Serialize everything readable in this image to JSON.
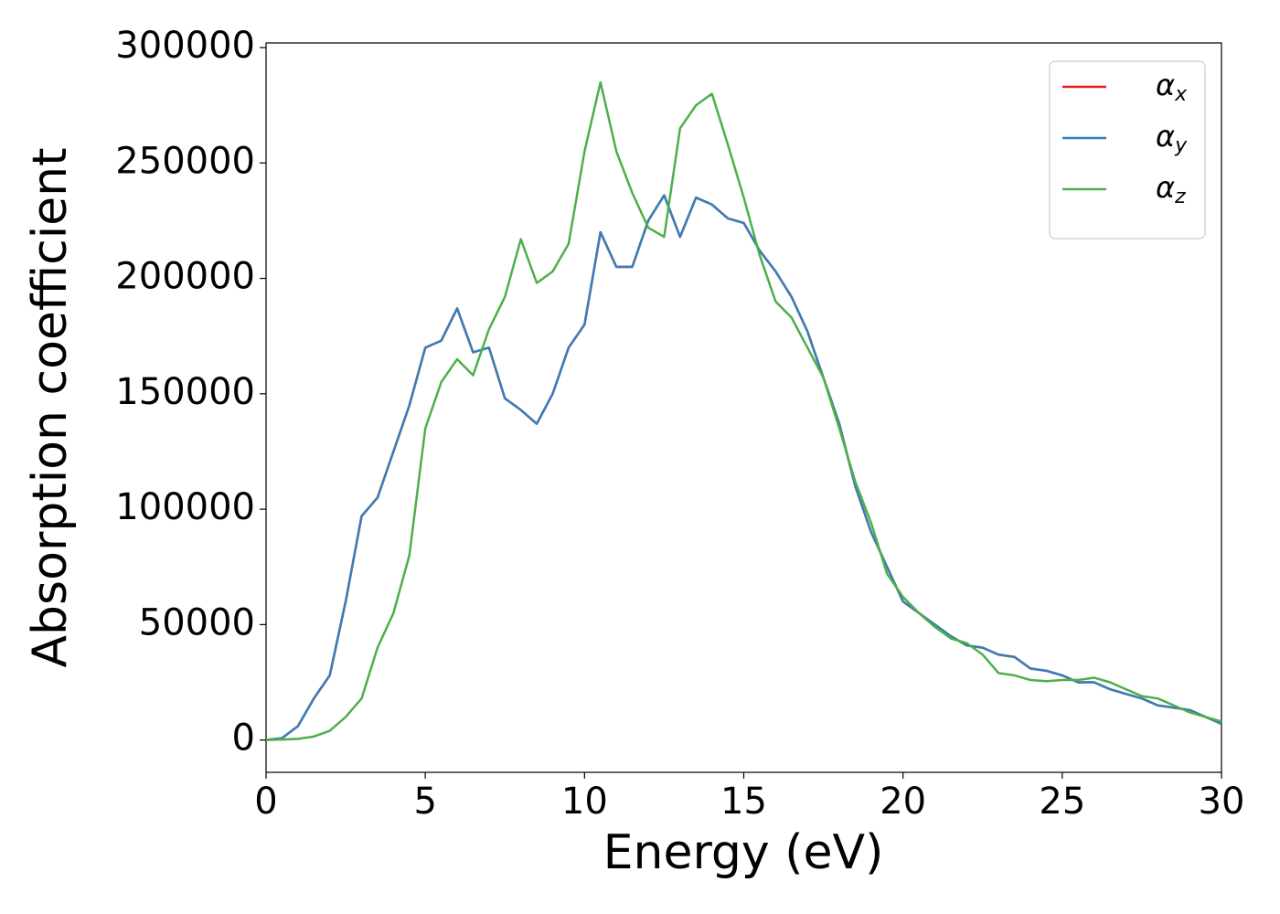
{
  "chart_data": {
    "type": "line",
    "xlabel": "Energy (eV)",
    "ylabel": "Absorption coefficient",
    "x": [
      0,
      0.5,
      1,
      1.5,
      2,
      2.5,
      3,
      3.5,
      4,
      4.5,
      5,
      5.5,
      6,
      6.5,
      7,
      7.5,
      8,
      8.5,
      9,
      9.5,
      10,
      10.5,
      11,
      11.5,
      12,
      12.5,
      13,
      13.5,
      14,
      14.5,
      15,
      15.5,
      16,
      16.5,
      17,
      17.5,
      18,
      18.5,
      19,
      19.5,
      20,
      20.5,
      21,
      21.5,
      22,
      22.5,
      23,
      23.5,
      24,
      24.5,
      25,
      25.5,
      26,
      26.5,
      27,
      27.5,
      28,
      28.5,
      29,
      29.5,
      30
    ],
    "series": [
      {
        "name": "αx",
        "color": "#e41a1c",
        "values": [
          0,
          800,
          6000,
          18000,
          28000,
          60000,
          97000,
          105000,
          125000,
          145000,
          170000,
          173000,
          187000,
          168000,
          170000,
          148000,
          143000,
          137000,
          150000,
          170000,
          180000,
          220000,
          205000,
          205000,
          225000,
          236000,
          218000,
          235000,
          232000,
          226000,
          224000,
          212000,
          203000,
          192000,
          177000,
          157000,
          137000,
          110000,
          90000,
          75000,
          60000,
          55000,
          50000,
          45000,
          41000,
          40000,
          37000,
          36000,
          31000,
          30000,
          28000,
          25000,
          25000,
          22000,
          20000,
          18000,
          15000,
          14000,
          13000,
          10000,
          7000
        ]
      },
      {
        "name": "αy",
        "color": "#377eb8",
        "values": [
          0,
          800,
          6000,
          18000,
          28000,
          60000,
          97000,
          105000,
          125000,
          145000,
          170000,
          173000,
          187000,
          168000,
          170000,
          148000,
          143000,
          137000,
          150000,
          170000,
          180000,
          220000,
          205000,
          205000,
          225000,
          236000,
          218000,
          235000,
          232000,
          226000,
          224000,
          212000,
          203000,
          192000,
          177000,
          157000,
          137000,
          110000,
          90000,
          75000,
          60000,
          55000,
          50000,
          45000,
          41000,
          40000,
          37000,
          36000,
          31000,
          30000,
          28000,
          25000,
          25000,
          22000,
          20000,
          18000,
          15000,
          14000,
          13000,
          10000,
          7000
        ]
      },
      {
        "name": "αz",
        "color": "#4daf4a",
        "values": [
          0,
          200,
          500,
          1500,
          4000,
          10000,
          18000,
          40000,
          55000,
          80000,
          135000,
          155000,
          165000,
          158000,
          178000,
          192000,
          217000,
          198000,
          203000,
          215000,
          255000,
          285000,
          255000,
          237000,
          222000,
          218000,
          265000,
          275000,
          280000,
          258000,
          235000,
          210000,
          190000,
          183000,
          170000,
          157000,
          135000,
          112000,
          94000,
          72000,
          62000,
          55000,
          49000,
          44000,
          42000,
          37000,
          29000,
          28000,
          26000,
          25500,
          26000,
          26000,
          27000,
          25000,
          22000,
          19000,
          18000,
          15000,
          12000,
          10000,
          8000
        ]
      }
    ],
    "xlim": [
      0,
      30
    ],
    "xticks": [
      0,
      5,
      10,
      15,
      20,
      25,
      30
    ],
    "ylim": [
      -14000,
      302000
    ],
    "yticks": [
      0,
      50000,
      100000,
      150000,
      200000,
      250000,
      300000
    ],
    "grid": false,
    "legend": "upper right"
  }
}
